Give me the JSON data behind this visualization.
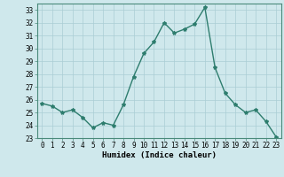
{
  "x": [
    0,
    1,
    2,
    3,
    4,
    5,
    6,
    7,
    8,
    9,
    10,
    11,
    12,
    13,
    14,
    15,
    16,
    17,
    18,
    19,
    20,
    21,
    22,
    23
  ],
  "y": [
    25.7,
    25.5,
    25.0,
    25.2,
    24.6,
    23.8,
    24.2,
    24.0,
    25.6,
    27.8,
    29.6,
    30.5,
    32.0,
    31.2,
    31.5,
    31.9,
    33.2,
    28.5,
    26.5,
    25.6,
    25.0,
    25.2,
    24.3,
    23.1
  ],
  "line_color": "#2e7d6e",
  "marker": "*",
  "marker_size": 3,
  "bg_color": "#cfe8ec",
  "grid_color": "#aacdd4",
  "xlabel": "Humidex (Indice chaleur)",
  "ylim": [
    23,
    33.5
  ],
  "xlim": [
    -0.5,
    23.5
  ],
  "yticks": [
    23,
    24,
    25,
    26,
    27,
    28,
    29,
    30,
    31,
    32,
    33
  ],
  "xticks": [
    0,
    1,
    2,
    3,
    4,
    5,
    6,
    7,
    8,
    9,
    10,
    11,
    12,
    13,
    14,
    15,
    16,
    17,
    18,
    19,
    20,
    21,
    22,
    23
  ],
  "tick_fontsize": 5.5,
  "xlabel_fontsize": 6.5,
  "line_width": 1.0
}
